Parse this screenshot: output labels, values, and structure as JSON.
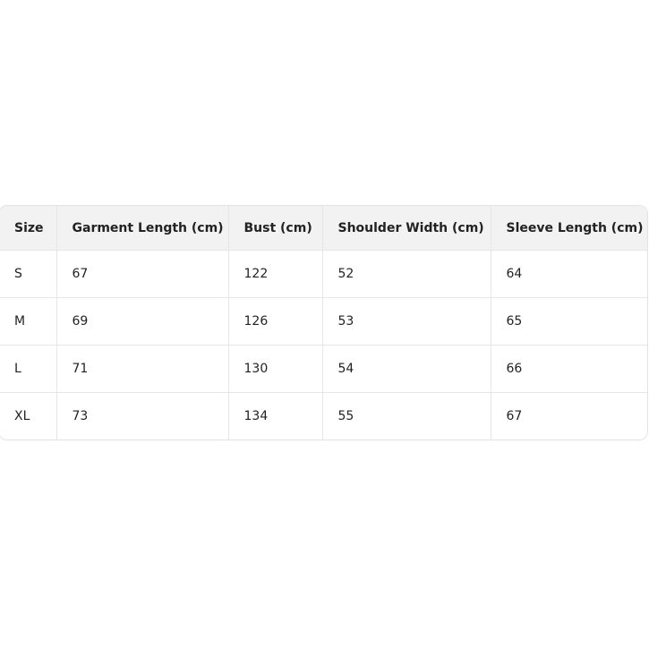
{
  "table": {
    "headers": [
      "Size",
      "Garment Length (cm)",
      "Bust (cm)",
      "Shoulder Width (cm)",
      "Sleeve Length (cm)"
    ],
    "rows": [
      [
        "S",
        "67",
        "122",
        "52",
        "64"
      ],
      [
        "M",
        "69",
        "126",
        "53",
        "65"
      ],
      [
        "L",
        "71",
        "130",
        "54",
        "66"
      ],
      [
        "XL",
        "73",
        "134",
        "55",
        "67"
      ]
    ]
  }
}
